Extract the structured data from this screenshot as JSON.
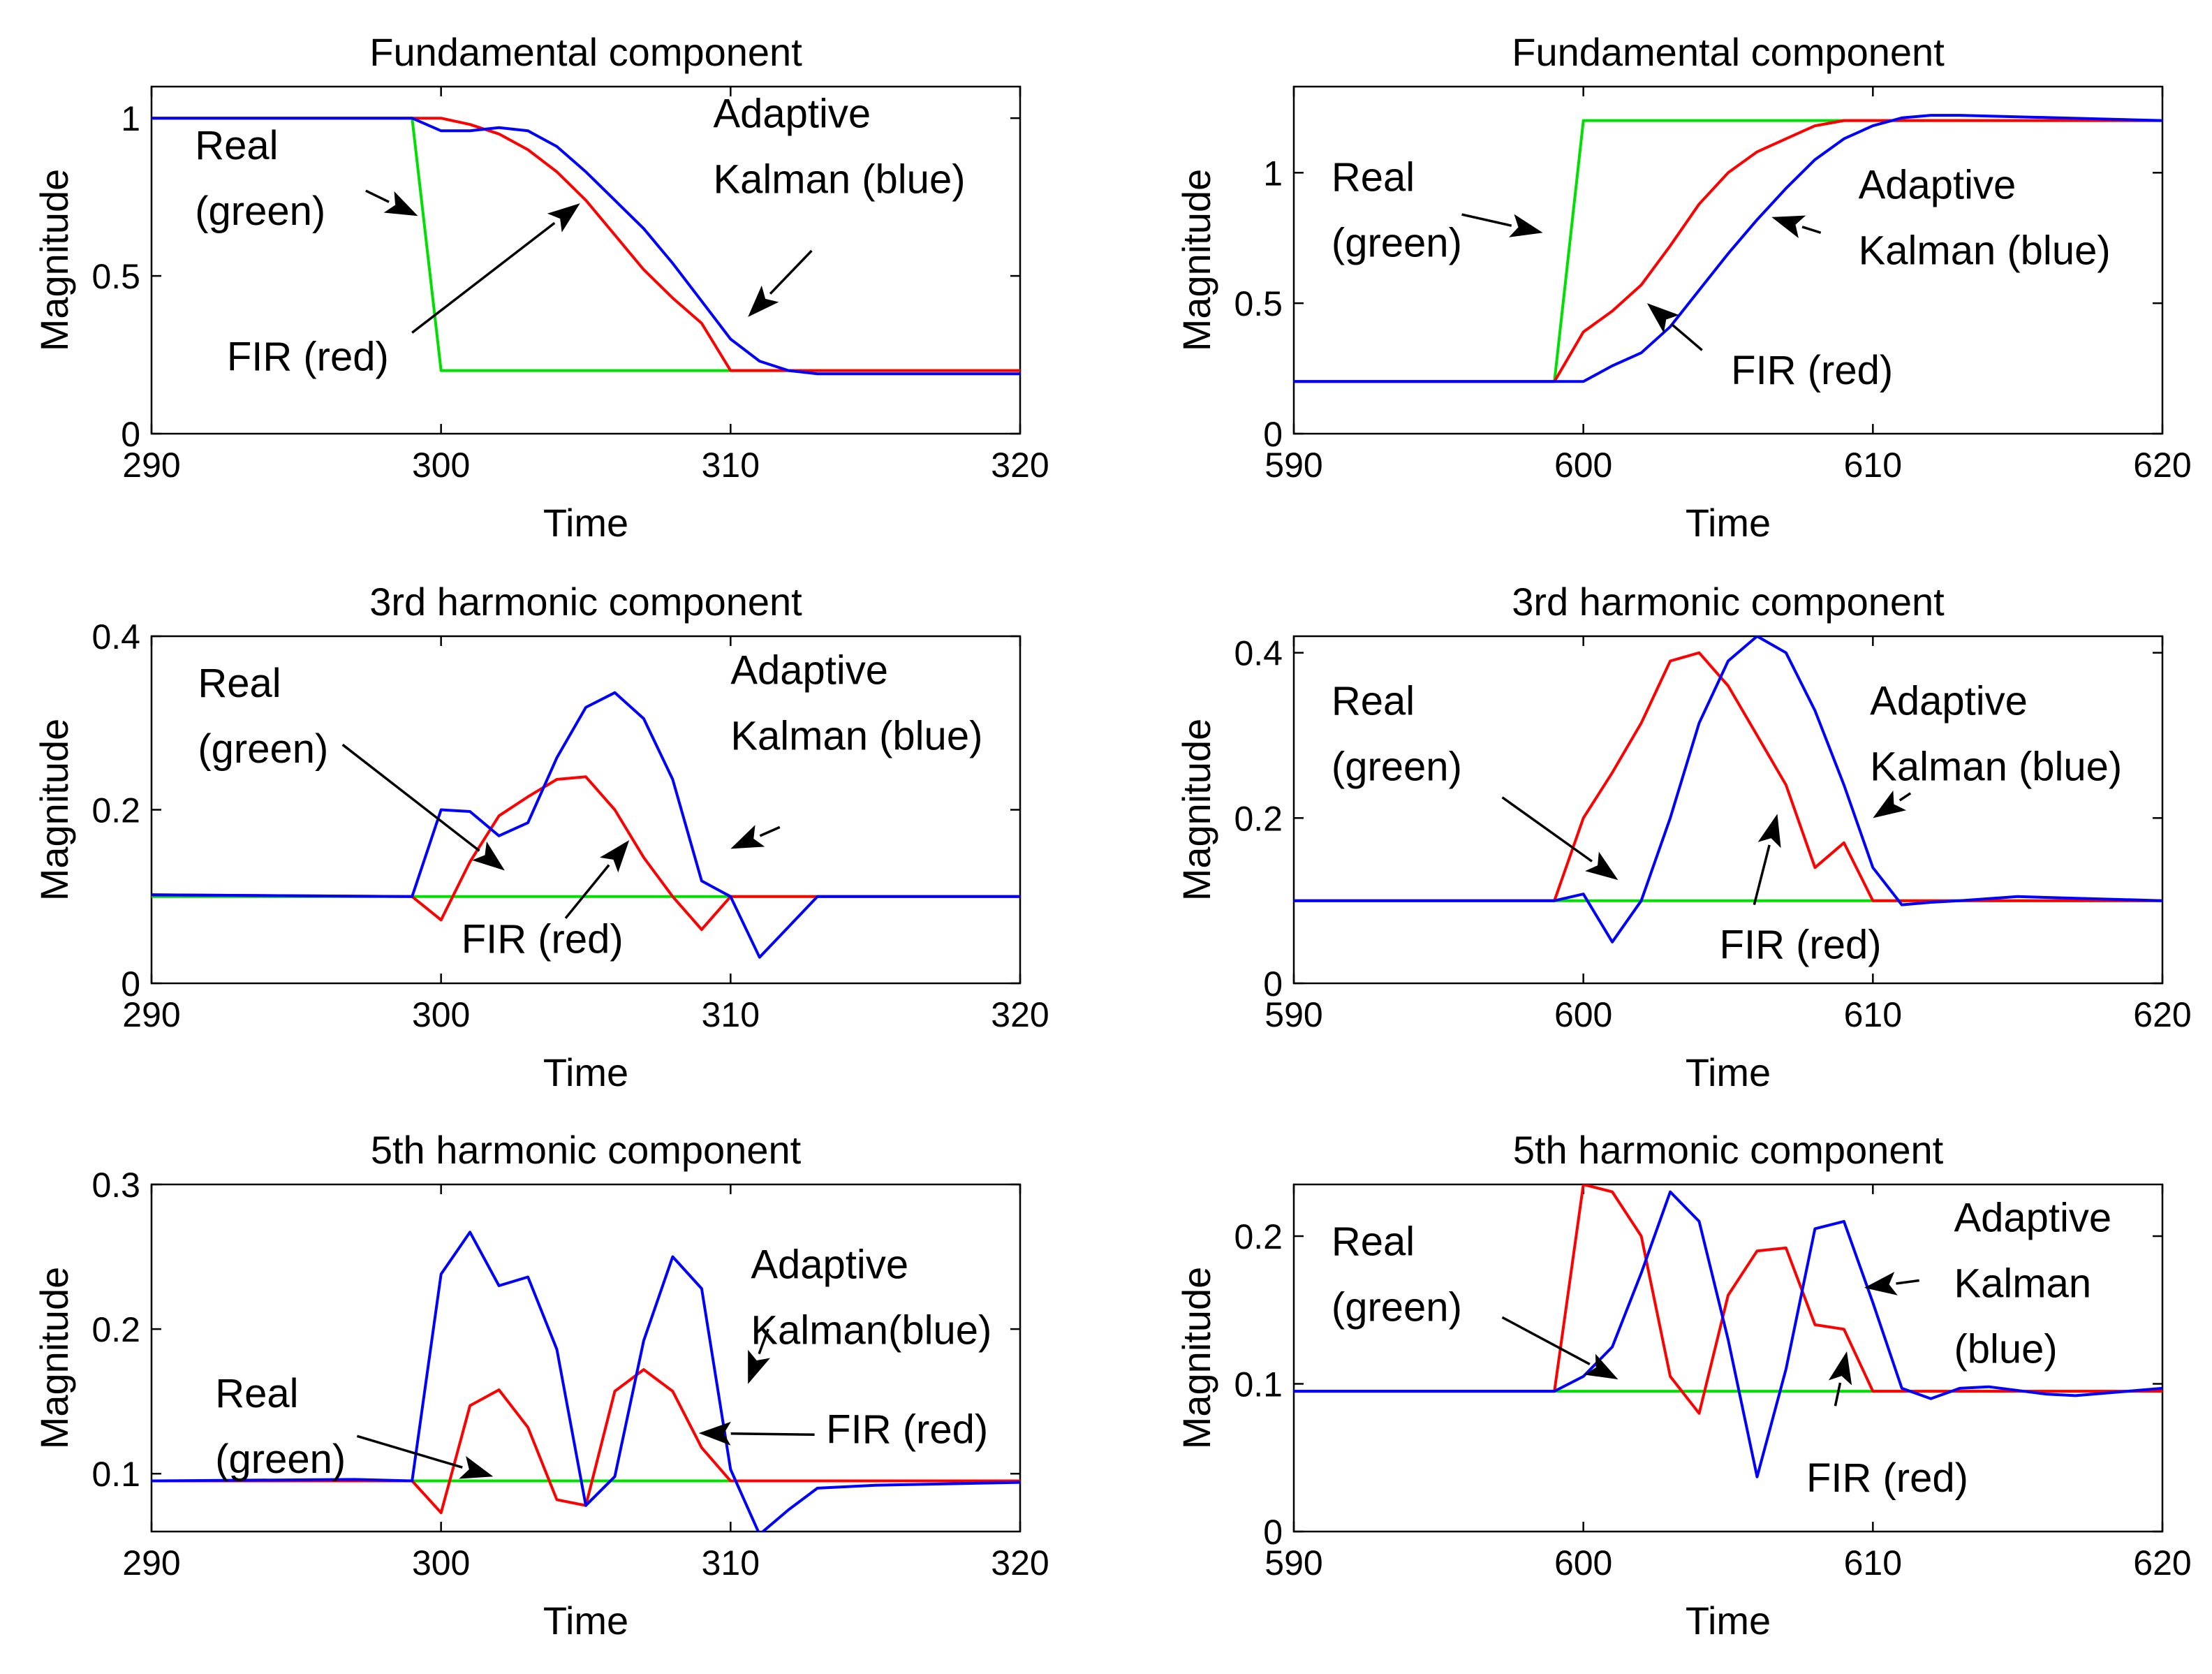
{
  "colors": {
    "real": "#00e000",
    "fir": "#ff0000",
    "kalman": "#0000ff"
  },
  "chart_data": [
    {
      "type": "line",
      "title": "Fundamental component",
      "xlabel": "Time",
      "ylabel": "Magnitude",
      "xlim": [
        290,
        320
      ],
      "ylim": [
        0,
        1.1
      ],
      "xticks": [
        290,
        300,
        310,
        320
      ],
      "yticks": [
        0,
        0.5,
        1
      ],
      "xtick_labels": [
        "290",
        "300",
        "310",
        "320"
      ],
      "ytick_labels": [
        "0",
        "0.5",
        "1"
      ],
      "series": [
        {
          "key": "real",
          "x": [
            290,
            299,
            300,
            320
          ],
          "y": [
            1,
            1,
            0.2,
            0.2
          ]
        },
        {
          "key": "fir",
          "x": [
            290,
            299,
            300,
            301,
            302,
            303,
            304,
            305,
            306,
            307,
            308,
            309,
            310,
            320
          ],
          "y": [
            1,
            1,
            1.0,
            0.98,
            0.95,
            0.9,
            0.83,
            0.74,
            0.63,
            0.52,
            0.43,
            0.35,
            0.2,
            0.2
          ]
        },
        {
          "key": "kalman",
          "x": [
            290,
            299,
            300,
            301,
            302,
            303,
            304,
            305,
            306,
            307,
            308,
            309,
            310,
            311,
            312,
            313,
            320
          ],
          "y": [
            1,
            1,
            0.96,
            0.96,
            0.97,
            0.96,
            0.91,
            0.83,
            0.74,
            0.65,
            0.54,
            0.42,
            0.3,
            0.23,
            0.2,
            0.19,
            0.19
          ]
        }
      ],
      "annotations": [
        {
          "lines": [
            "Real",
            "(green)"
          ],
          "x": 291.5,
          "y": 0.87
        },
        {
          "lines": [
            "FIR (red)"
          ],
          "x": 292.6,
          "y": 0.2
        },
        {
          "lines": [
            "Adaptive",
            "Kalman (blue)"
          ],
          "x": 309.4,
          "y": 0.97
        }
      ],
      "arrows": [
        {
          "from": [
            297.4,
            0.77
          ],
          "to": [
            299.2,
            0.69
          ]
        },
        {
          "from": [
            299.0,
            0.32
          ],
          "to": [
            304.8,
            0.73
          ]
        },
        {
          "from": [
            312.8,
            0.58
          ],
          "to": [
            310.6,
            0.37
          ]
        }
      ]
    },
    {
      "type": "line",
      "title": "Fundamental component",
      "xlabel": "Time",
      "ylabel": "Magnitude",
      "xlim": [
        590,
        620
      ],
      "ylim": [
        0,
        1.33
      ],
      "xticks": [
        590,
        600,
        610,
        620
      ],
      "yticks": [
        0,
        0.5,
        1
      ],
      "xtick_labels": [
        "590",
        "600",
        "610",
        "620"
      ],
      "ytick_labels": [
        "0",
        "0.5",
        "1"
      ],
      "series": [
        {
          "key": "real",
          "x": [
            590,
            599,
            600,
            620
          ],
          "y": [
            0.2,
            0.2,
            1.2,
            1.2
          ]
        },
        {
          "key": "fir",
          "x": [
            590,
            599,
            600,
            601,
            602,
            603,
            604,
            605,
            606,
            607,
            608,
            609,
            610,
            620
          ],
          "y": [
            0.2,
            0.2,
            0.39,
            0.47,
            0.57,
            0.72,
            0.88,
            1.0,
            1.08,
            1.13,
            1.18,
            1.2,
            1.2,
            1.2
          ]
        },
        {
          "key": "kalman",
          "x": [
            590,
            599,
            600,
            601,
            602,
            603,
            604,
            605,
            606,
            607,
            608,
            609,
            610,
            611,
            612,
            613,
            620
          ],
          "y": [
            0.2,
            0.2,
            0.2,
            0.26,
            0.31,
            0.41,
            0.55,
            0.69,
            0.82,
            0.94,
            1.05,
            1.13,
            1.18,
            1.21,
            1.22,
            1.22,
            1.2
          ]
        }
      ],
      "annotations": [
        {
          "lines": [
            "Real",
            "(green)"
          ],
          "x": 591.3,
          "y": 0.93
        },
        {
          "lines": [
            "FIR (red)"
          ],
          "x": 605.1,
          "y": 0.19
        },
        {
          "lines": [
            "Adaptive",
            "Kalman (blue)"
          ],
          "x": 609.5,
          "y": 0.9
        }
      ],
      "arrows": [
        {
          "from": [
            595.8,
            0.84
          ],
          "to": [
            598.6,
            0.77
          ]
        },
        {
          "from": [
            604.1,
            0.32
          ],
          "to": [
            602.2,
            0.5
          ]
        },
        {
          "from": [
            608.2,
            0.77
          ],
          "to": [
            606.5,
            0.83
          ]
        }
      ]
    },
    {
      "type": "line",
      "title": "3rd harmonic component",
      "xlabel": "Time",
      "ylabel": "Magnitude",
      "xlim": [
        290,
        320
      ],
      "ylim": [
        0,
        0.4
      ],
      "xticks": [
        290,
        300,
        310,
        320
      ],
      "yticks": [
        0,
        0.2,
        0.4
      ],
      "xtick_labels": [
        "290",
        "300",
        "310",
        "320"
      ],
      "ytick_labels": [
        "0",
        "0.2",
        "0.4"
      ],
      "series": [
        {
          "key": "real",
          "x": [
            290,
            320
          ],
          "y": [
            0.1,
            0.1
          ]
        },
        {
          "key": "fir",
          "x": [
            290,
            299,
            300,
            301,
            302,
            303,
            304,
            305,
            306,
            307,
            308,
            309,
            310,
            320
          ],
          "y": [
            0.102,
            0.1,
            0.073,
            0.14,
            0.193,
            0.215,
            0.235,
            0.238,
            0.2,
            0.145,
            0.1,
            0.062,
            0.1,
            0.1
          ]
        },
        {
          "key": "kalman",
          "x": [
            290,
            299,
            300,
            301,
            302,
            303,
            304,
            305,
            306,
            307,
            308,
            309,
            310,
            311,
            312,
            313,
            320
          ],
          "y": [
            0.102,
            0.1,
            0.2,
            0.198,
            0.17,
            0.185,
            0.26,
            0.318,
            0.335,
            0.305,
            0.235,
            0.118,
            0.1,
            0.03,
            0.065,
            0.1,
            0.1
          ]
        }
      ],
      "annotations": [
        {
          "lines": [
            "Real",
            "(green)"
          ],
          "x": 291.6,
          "y": 0.33
        },
        {
          "lines": [
            "FIR (red)"
          ],
          "x": 300.7,
          "y": 0.035
        },
        {
          "lines": [
            "Adaptive",
            "Kalman (blue)"
          ],
          "x": 310.0,
          "y": 0.345
        }
      ],
      "arrows": [
        {
          "from": [
            296.6,
            0.275
          ],
          "to": [
            302.2,
            0.13
          ]
        },
        {
          "from": [
            304.3,
            0.075
          ],
          "to": [
            306.5,
            0.165
          ]
        },
        {
          "from": [
            311.7,
            0.18
          ],
          "to": [
            310.0,
            0.155
          ]
        }
      ]
    },
    {
      "type": "line",
      "title": "3rd harmonic component",
      "xlabel": "Time",
      "ylabel": "Magnitude",
      "xlim": [
        590,
        620
      ],
      "ylim": [
        0,
        0.42
      ],
      "xticks": [
        590,
        600,
        610,
        620
      ],
      "yticks": [
        0,
        0.2,
        0.4
      ],
      "xtick_labels": [
        "590",
        "600",
        "610",
        "620"
      ],
      "ytick_labels": [
        "0",
        "0.2",
        "0.4"
      ],
      "series": [
        {
          "key": "real",
          "x": [
            590,
            620
          ],
          "y": [
            0.1,
            0.1
          ]
        },
        {
          "key": "fir",
          "x": [
            590,
            599,
            600,
            601,
            602,
            603,
            604,
            605,
            606,
            607,
            608,
            609,
            610,
            620
          ],
          "y": [
            0.1,
            0.1,
            0.2,
            0.255,
            0.315,
            0.39,
            0.4,
            0.36,
            0.3,
            0.24,
            0.14,
            0.17,
            0.1,
            0.1
          ]
        },
        {
          "key": "kalman",
          "x": [
            590,
            599,
            600,
            601,
            602,
            603,
            604,
            605,
            606,
            607,
            608,
            609,
            610,
            611,
            612,
            613,
            615,
            620
          ],
          "y": [
            0.1,
            0.1,
            0.108,
            0.05,
            0.1,
            0.2,
            0.315,
            0.39,
            0.42,
            0.4,
            0.33,
            0.24,
            0.14,
            0.095,
            0.098,
            0.1,
            0.105,
            0.1
          ]
        }
      ],
      "annotations": [
        {
          "lines": [
            "Real",
            "(green)"
          ],
          "x": 591.3,
          "y": 0.325
        },
        {
          "lines": [
            "FIR (red)"
          ],
          "x": 604.7,
          "y": 0.03
        },
        {
          "lines": [
            "Adaptive",
            "Kalman (blue)"
          ],
          "x": 609.9,
          "y": 0.325
        }
      ],
      "arrows": [
        {
          "from": [
            597.2,
            0.225
          ],
          "to": [
            601.2,
            0.125
          ]
        },
        {
          "from": [
            605.9,
            0.095
          ],
          "to": [
            606.7,
            0.205
          ]
        },
        {
          "from": [
            611.3,
            0.23
          ],
          "to": [
            610.0,
            0.2
          ]
        }
      ]
    },
    {
      "type": "line",
      "title": "5th harmonic component",
      "xlabel": "Time",
      "ylabel": "Magnitude",
      "xlim": [
        290,
        320
      ],
      "ylim": [
        0.06,
        0.3
      ],
      "xticks": [
        290,
        300,
        310,
        320
      ],
      "yticks": [
        0.1,
        0.2,
        0.3
      ],
      "xtick_labels": [
        "290",
        "300",
        "310",
        "320"
      ],
      "ytick_labels": [
        "0.1",
        "0.2",
        "0.3"
      ],
      "series": [
        {
          "key": "real",
          "x": [
            290,
            320
          ],
          "y": [
            0.095,
            0.095
          ]
        },
        {
          "key": "fir",
          "x": [
            290,
            299,
            300,
            301,
            302,
            303,
            304,
            305,
            306,
            307,
            308,
            309,
            310,
            320
          ],
          "y": [
            0.095,
            0.095,
            0.073,
            0.147,
            0.158,
            0.132,
            0.082,
            0.078,
            0.157,
            0.172,
            0.157,
            0.118,
            0.095,
            0.095
          ]
        },
        {
          "key": "kalman",
          "x": [
            290,
            297,
            299,
            300,
            301,
            302,
            303,
            304,
            305,
            306,
            307,
            308,
            309,
            310,
            311,
            312,
            313,
            315,
            320
          ],
          "y": [
            0.095,
            0.096,
            0.095,
            0.238,
            0.267,
            0.23,
            0.236,
            0.186,
            0.078,
            0.098,
            0.192,
            0.25,
            0.228,
            0.103,
            0.058,
            0.075,
            0.09,
            0.092,
            0.094
          ]
        }
      ],
      "annotations": [
        {
          "lines": [
            "Real",
            "(green)"
          ],
          "x": 292.2,
          "y": 0.146
        },
        {
          "lines": [
            "FIR (red)"
          ],
          "x": 313.3,
          "y": 0.121
        },
        {
          "lines": [
            "Adaptive",
            "Kalman(blue)"
          ],
          "x": 310.7,
          "y": 0.235
        }
      ],
      "arrows": [
        {
          "from": [
            297.1,
            0.126
          ],
          "to": [
            301.8,
            0.098
          ]
        },
        {
          "from": [
            312.9,
            0.127
          ],
          "to": [
            308.9,
            0.128
          ]
        },
        {
          "from": [
            311.3,
            0.2
          ],
          "to": [
            310.6,
            0.162
          ]
        }
      ]
    },
    {
      "type": "line",
      "title": "5th harmonic component",
      "xlabel": "Time",
      "ylabel": "Magnitude",
      "xlim": [
        590,
        620
      ],
      "ylim": [
        0,
        0.235
      ],
      "xticks": [
        590,
        600,
        610,
        620
      ],
      "yticks": [
        0,
        0.1,
        0.2
      ],
      "xtick_labels": [
        "590",
        "600",
        "610",
        "620"
      ],
      "ytick_labels": [
        "0",
        "0.1",
        "0.2"
      ],
      "series": [
        {
          "key": "real",
          "x": [
            590,
            620
          ],
          "y": [
            0.095,
            0.095
          ]
        },
        {
          "key": "fir",
          "x": [
            590,
            599,
            600,
            601,
            602,
            603,
            604,
            605,
            606,
            607,
            608,
            609,
            610,
            620
          ],
          "y": [
            0.095,
            0.095,
            0.235,
            0.23,
            0.2,
            0.105,
            0.08,
            0.16,
            0.19,
            0.192,
            0.14,
            0.137,
            0.095,
            0.095
          ]
        },
        {
          "key": "kalman",
          "x": [
            590,
            599,
            600,
            601,
            602,
            603,
            604,
            605,
            606,
            607,
            608,
            609,
            610,
            611,
            612,
            613,
            614,
            616,
            617,
            620
          ],
          "y": [
            0.095,
            0.095,
            0.105,
            0.125,
            0.175,
            0.23,
            0.21,
            0.13,
            0.037,
            0.11,
            0.205,
            0.21,
            0.155,
            0.097,
            0.09,
            0.097,
            0.098,
            0.093,
            0.092,
            0.097
          ]
        }
      ],
      "annotations": [
        {
          "lines": [
            "Real",
            "(green)"
          ],
          "x": 591.3,
          "y": 0.187
        },
        {
          "lines": [
            "FIR (red)"
          ],
          "x": 607.7,
          "y": 0.027
        },
        {
          "lines": [
            "Adaptive",
            "Kalman",
            "(blue)"
          ],
          "x": 612.8,
          "y": 0.203
        }
      ],
      "arrows": [
        {
          "from": [
            597.2,
            0.145
          ],
          "to": [
            601.2,
            0.103
          ]
        },
        {
          "from": [
            608.7,
            0.085
          ],
          "to": [
            609.1,
            0.122
          ]
        },
        {
          "from": [
            611.6,
            0.17
          ],
          "to": [
            609.7,
            0.165
          ]
        }
      ]
    }
  ]
}
